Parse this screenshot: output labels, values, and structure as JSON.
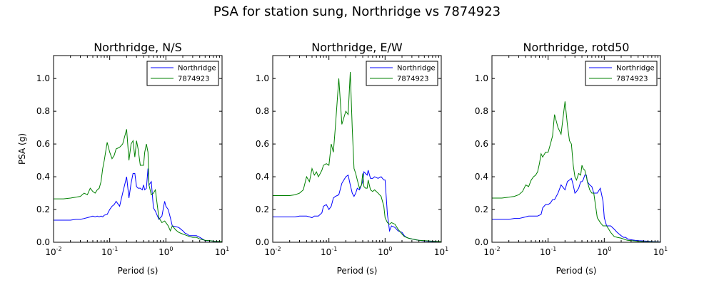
{
  "title": "PSA for station sung, Northridge vs 7874923",
  "colors": {
    "Northridge": "#0000ff",
    "7874923": "#008000"
  },
  "chart_data": [
    {
      "type": "line",
      "title": "Northridge, N/S",
      "xlabel": "Period (s)",
      "ylabel": "PSA (g)",
      "xscale": "log",
      "xlim": [
        0.01,
        10
      ],
      "ylim": [
        0,
        1.14
      ],
      "grid": false,
      "legend": "top-right",
      "series": [
        {
          "name": "Northridge",
          "color": "#0000ff",
          "x": [
            0.01,
            0.015,
            0.02,
            0.025,
            0.03,
            0.035,
            0.04,
            0.045,
            0.05,
            0.055,
            0.06,
            0.065,
            0.07,
            0.075,
            0.08,
            0.09,
            0.1,
            0.11,
            0.12,
            0.13,
            0.15,
            0.17,
            0.2,
            0.22,
            0.24,
            0.26,
            0.28,
            0.3,
            0.32,
            0.35,
            0.38,
            0.4,
            0.42,
            0.45,
            0.48,
            0.5,
            0.55,
            0.6,
            0.65,
            0.75,
            0.85,
            0.95,
            1.0,
            1.1,
            1.2,
            1.3,
            1.5,
            1.7,
            2.0,
            2.2,
            2.4,
            2.6,
            3.0,
            3.5,
            4.0,
            5.0,
            6.0,
            7.5,
            10.0
          ],
          "y": [
            0.135,
            0.135,
            0.135,
            0.14,
            0.14,
            0.145,
            0.15,
            0.155,
            0.16,
            0.155,
            0.16,
            0.155,
            0.16,
            0.155,
            0.165,
            0.17,
            0.2,
            0.22,
            0.23,
            0.25,
            0.22,
            0.3,
            0.4,
            0.27,
            0.36,
            0.42,
            0.42,
            0.34,
            0.33,
            0.33,
            0.32,
            0.35,
            0.32,
            0.33,
            0.45,
            0.35,
            0.37,
            0.21,
            0.19,
            0.14,
            0.16,
            0.25,
            0.22,
            0.2,
            0.15,
            0.1,
            0.095,
            0.09,
            0.07,
            0.055,
            0.05,
            0.04,
            0.04,
            0.04,
            0.03,
            0.01,
            0.01,
            0.005,
            0.003
          ]
        },
        {
          "name": "7874923",
          "color": "#008000",
          "x": [
            0.01,
            0.015,
            0.02,
            0.025,
            0.03,
            0.035,
            0.04,
            0.045,
            0.05,
            0.055,
            0.06,
            0.065,
            0.07,
            0.075,
            0.08,
            0.09,
            0.1,
            0.11,
            0.12,
            0.13,
            0.15,
            0.17,
            0.2,
            0.22,
            0.24,
            0.26,
            0.28,
            0.3,
            0.32,
            0.35,
            0.38,
            0.4,
            0.42,
            0.45,
            0.48,
            0.5,
            0.55,
            0.6,
            0.65,
            0.75,
            0.85,
            0.95,
            1.0,
            1.1,
            1.2,
            1.3,
            1.5,
            1.7,
            2.0,
            2.2,
            2.4,
            2.6,
            3.0,
            3.5,
            4.0,
            5.0,
            6.0,
            7.5,
            10.0
          ],
          "y": [
            0.265,
            0.265,
            0.27,
            0.275,
            0.28,
            0.3,
            0.29,
            0.33,
            0.31,
            0.3,
            0.32,
            0.33,
            0.37,
            0.45,
            0.5,
            0.61,
            0.55,
            0.51,
            0.53,
            0.57,
            0.58,
            0.6,
            0.69,
            0.5,
            0.6,
            0.62,
            0.52,
            0.62,
            0.57,
            0.47,
            0.47,
            0.47,
            0.55,
            0.6,
            0.55,
            0.35,
            0.29,
            0.3,
            0.32,
            0.15,
            0.12,
            0.13,
            0.12,
            0.1,
            0.07,
            0.1,
            0.075,
            0.06,
            0.05,
            0.045,
            0.04,
            0.035,
            0.03,
            0.03,
            0.02,
            0.012,
            0.01,
            0.006,
            0.004
          ]
        }
      ]
    },
    {
      "type": "line",
      "title": "Northridge, E/W",
      "xlabel": "Period (s)",
      "ylabel": "",
      "xscale": "log",
      "xlim": [
        0.01,
        10
      ],
      "ylim": [
        0,
        1.14
      ],
      "grid": false,
      "legend": "top-right",
      "series": [
        {
          "name": "Northridge",
          "color": "#0000ff",
          "x": [
            0.01,
            0.015,
            0.02,
            0.025,
            0.03,
            0.035,
            0.04,
            0.045,
            0.05,
            0.055,
            0.06,
            0.065,
            0.07,
            0.075,
            0.08,
            0.09,
            0.1,
            0.11,
            0.12,
            0.13,
            0.15,
            0.17,
            0.2,
            0.22,
            0.24,
            0.26,
            0.28,
            0.3,
            0.32,
            0.35,
            0.38,
            0.4,
            0.42,
            0.45,
            0.48,
            0.5,
            0.55,
            0.6,
            0.65,
            0.75,
            0.85,
            0.95,
            1.0,
            1.1,
            1.2,
            1.3,
            1.5,
            1.7,
            2.0,
            2.2,
            2.4,
            2.6,
            3.0,
            3.5,
            4.0,
            5.0,
            6.0,
            7.5,
            10.0
          ],
          "y": [
            0.155,
            0.155,
            0.155,
            0.155,
            0.16,
            0.16,
            0.16,
            0.155,
            0.15,
            0.16,
            0.16,
            0.16,
            0.17,
            0.18,
            0.22,
            0.23,
            0.2,
            0.22,
            0.27,
            0.28,
            0.29,
            0.36,
            0.4,
            0.41,
            0.35,
            0.3,
            0.28,
            0.3,
            0.33,
            0.32,
            0.35,
            0.37,
            0.43,
            0.42,
            0.41,
            0.44,
            0.39,
            0.39,
            0.4,
            0.39,
            0.4,
            0.38,
            0.38,
            0.17,
            0.07,
            0.1,
            0.09,
            0.07,
            0.06,
            0.04,
            0.03,
            0.025,
            0.02,
            0.015,
            0.012,
            0.008,
            0.006,
            0.004,
            0.002
          ]
        },
        {
          "name": "7874923",
          "color": "#008000",
          "x": [
            0.01,
            0.015,
            0.02,
            0.025,
            0.03,
            0.035,
            0.04,
            0.045,
            0.05,
            0.055,
            0.06,
            0.065,
            0.07,
            0.075,
            0.08,
            0.09,
            0.1,
            0.11,
            0.12,
            0.13,
            0.15,
            0.17,
            0.2,
            0.22,
            0.24,
            0.26,
            0.28,
            0.3,
            0.32,
            0.35,
            0.38,
            0.4,
            0.42,
            0.45,
            0.48,
            0.5,
            0.55,
            0.6,
            0.65,
            0.75,
            0.85,
            0.95,
            1.0,
            1.1,
            1.2,
            1.3,
            1.5,
            1.7,
            2.0,
            2.2,
            2.4,
            2.6,
            3.0,
            3.5,
            4.0,
            5.0,
            6.0,
            7.5,
            10.0
          ],
          "y": [
            0.285,
            0.285,
            0.285,
            0.29,
            0.3,
            0.32,
            0.4,
            0.37,
            0.45,
            0.41,
            0.43,
            0.4,
            0.42,
            0.44,
            0.47,
            0.48,
            0.47,
            0.6,
            0.55,
            0.7,
            1.0,
            0.72,
            0.8,
            0.78,
            1.04,
            0.7,
            0.45,
            0.42,
            0.38,
            0.33,
            0.35,
            0.42,
            0.34,
            0.33,
            0.33,
            0.38,
            0.32,
            0.31,
            0.32,
            0.3,
            0.28,
            0.22,
            0.15,
            0.12,
            0.11,
            0.12,
            0.11,
            0.08,
            0.05,
            0.035,
            0.03,
            0.025,
            0.02,
            0.015,
            0.012,
            0.01,
            0.008,
            0.006,
            0.004
          ]
        }
      ]
    },
    {
      "type": "line",
      "title": "Northridge, rotd50",
      "xlabel": "Period (s)",
      "ylabel": "",
      "xscale": "log",
      "xlim": [
        0.01,
        10
      ],
      "ylim": [
        0,
        1.14
      ],
      "grid": false,
      "legend": "top-right",
      "series": [
        {
          "name": "Northridge",
          "color": "#0000ff",
          "x": [
            0.01,
            0.015,
            0.02,
            0.025,
            0.03,
            0.035,
            0.04,
            0.045,
            0.05,
            0.055,
            0.06,
            0.065,
            0.07,
            0.075,
            0.08,
            0.09,
            0.1,
            0.11,
            0.12,
            0.13,
            0.15,
            0.17,
            0.2,
            0.22,
            0.24,
            0.26,
            0.28,
            0.3,
            0.32,
            0.35,
            0.38,
            0.4,
            0.42,
            0.45,
            0.48,
            0.5,
            0.55,
            0.6,
            0.65,
            0.75,
            0.85,
            0.95,
            1.0,
            1.1,
            1.2,
            1.3,
            1.5,
            1.7,
            2.0,
            2.2,
            2.4,
            2.6,
            3.0,
            3.5,
            4.0,
            5.0,
            6.0,
            7.5,
            10.0
          ],
          "y": [
            0.14,
            0.14,
            0.14,
            0.145,
            0.145,
            0.15,
            0.155,
            0.16,
            0.16,
            0.16,
            0.16,
            0.16,
            0.165,
            0.17,
            0.21,
            0.23,
            0.23,
            0.24,
            0.26,
            0.26,
            0.3,
            0.35,
            0.32,
            0.37,
            0.38,
            0.39,
            0.35,
            0.3,
            0.31,
            0.33,
            0.37,
            0.37,
            0.38,
            0.41,
            0.41,
            0.37,
            0.35,
            0.34,
            0.3,
            0.3,
            0.33,
            0.25,
            0.15,
            0.1,
            0.1,
            0.1,
            0.08,
            0.06,
            0.04,
            0.03,
            0.03,
            0.02,
            0.015,
            0.012,
            0.01,
            0.008,
            0.006,
            0.004,
            0.002
          ]
        },
        {
          "name": "7874923",
          "color": "#008000",
          "x": [
            0.01,
            0.015,
            0.02,
            0.025,
            0.03,
            0.035,
            0.04,
            0.045,
            0.05,
            0.055,
            0.06,
            0.065,
            0.07,
            0.075,
            0.08,
            0.09,
            0.1,
            0.11,
            0.12,
            0.13,
            0.15,
            0.17,
            0.2,
            0.22,
            0.24,
            0.26,
            0.28,
            0.3,
            0.32,
            0.35,
            0.38,
            0.4,
            0.42,
            0.45,
            0.48,
            0.5,
            0.55,
            0.6,
            0.65,
            0.75,
            0.85,
            0.95,
            1.0,
            1.1,
            1.2,
            1.3,
            1.5,
            1.7,
            2.0,
            2.2,
            2.4,
            2.6,
            3.0,
            3.5,
            4.0,
            5.0,
            6.0,
            7.5,
            10.0
          ],
          "y": [
            0.27,
            0.27,
            0.275,
            0.28,
            0.29,
            0.31,
            0.35,
            0.34,
            0.38,
            0.4,
            0.41,
            0.43,
            0.48,
            0.54,
            0.52,
            0.55,
            0.55,
            0.6,
            0.65,
            0.78,
            0.7,
            0.66,
            0.86,
            0.72,
            0.62,
            0.6,
            0.47,
            0.4,
            0.38,
            0.42,
            0.41,
            0.47,
            0.45,
            0.44,
            0.4,
            0.37,
            0.32,
            0.3,
            0.3,
            0.15,
            0.12,
            0.1,
            0.1,
            0.1,
            0.08,
            0.06,
            0.035,
            0.03,
            0.025,
            0.02,
            0.015,
            0.012,
            0.01,
            0.008,
            0.006,
            0.004,
            0.003,
            0.002,
            0.001
          ]
        }
      ]
    }
  ]
}
